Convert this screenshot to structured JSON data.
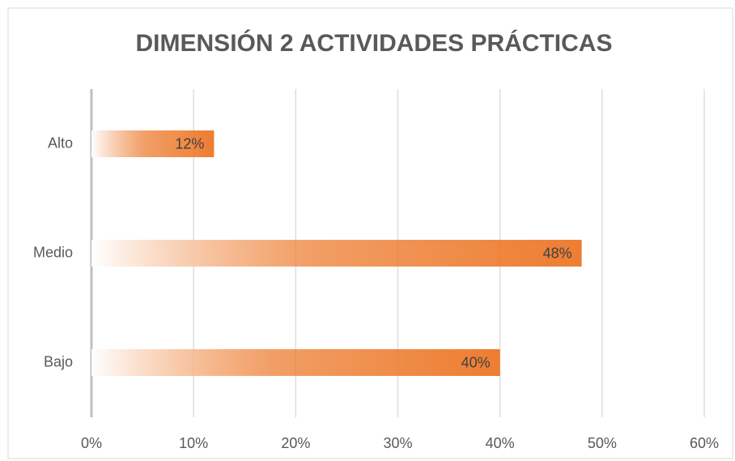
{
  "chart_data": {
    "type": "bar",
    "orientation": "horizontal",
    "title": "DIMENSIÓN 2 ACTIVIDADES PRÁCTICAS",
    "categories": [
      "Alto",
      "Medio",
      "Bajo"
    ],
    "values": [
      12,
      48,
      40
    ],
    "value_labels": [
      "12%",
      "48%",
      "40%"
    ],
    "color": "#ed7d31",
    "xlim": [
      0,
      60
    ],
    "xticks": [
      {
        "value": 0,
        "label": "0%"
      },
      {
        "value": 10,
        "label": "10%"
      },
      {
        "value": 20,
        "label": "20%"
      },
      {
        "value": 30,
        "label": "30%"
      },
      {
        "value": 40,
        "label": "40%"
      },
      {
        "value": 50,
        "label": "50%"
      },
      {
        "value": 60,
        "label": "60%"
      }
    ],
    "grid": true
  }
}
